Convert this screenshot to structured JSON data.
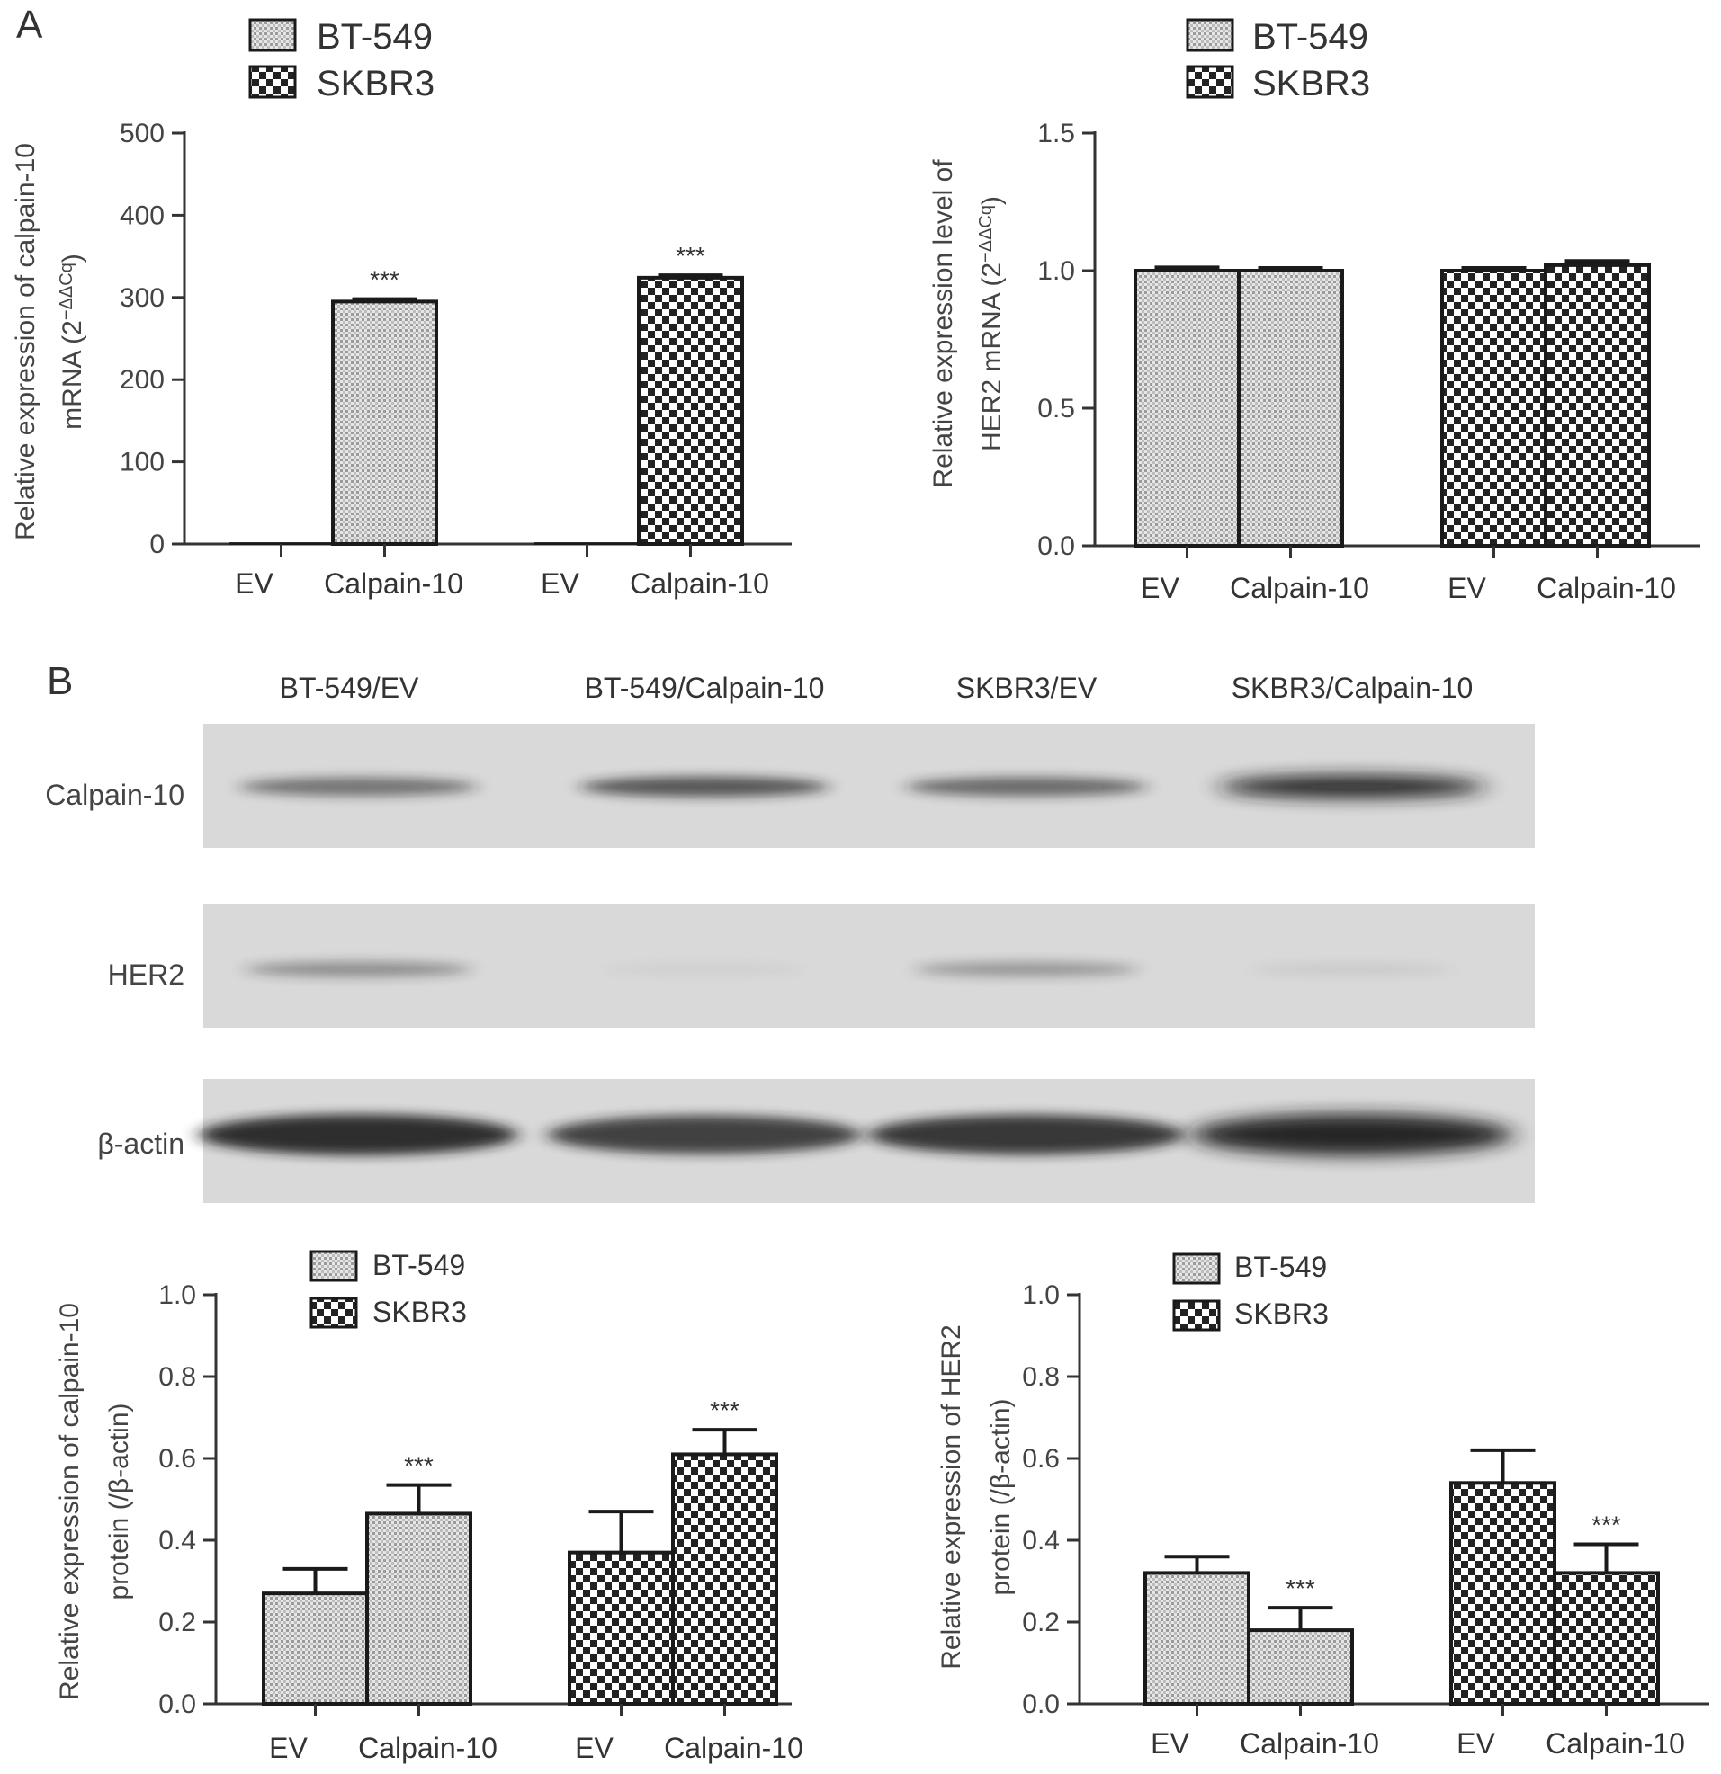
{
  "panels": {
    "a": "A",
    "b": "B"
  },
  "colors": {
    "axis": "#333333",
    "bar_edge": "#1a1a1a",
    "blot_bg": "#d9d9d9",
    "band": "#1c1c1c"
  },
  "legend": {
    "bt549": "BT-549",
    "skbr3": "SKBR3"
  },
  "chart_data": [
    {
      "type": "bar",
      "id": "calpain10_mrna",
      "ylabel_line1": "Relative expression of calpain-10",
      "ylabel_line2_prefix": "mRNA (2",
      "ylabel_line2_sup": "−ΔΔCq",
      "ylabel_line2_suffix": ")",
      "ylim": [
        0,
        500
      ],
      "yticks": [
        0,
        100,
        200,
        300,
        400,
        500
      ],
      "tick_labels": [
        "0",
        "100",
        "200",
        "300",
        "400",
        "500"
      ],
      "groups": [
        {
          "name": "BT-549",
          "pattern": "fine",
          "bars": [
            {
              "label": "EV",
              "value": 1,
              "error": 0,
              "sig": ""
            },
            {
              "label": "Calpain-10",
              "value": 295,
              "error": 3,
              "sig": "***"
            }
          ]
        },
        {
          "name": "SKBR3",
          "pattern": "check",
          "bars": [
            {
              "label": "EV",
              "value": 1,
              "error": 0,
              "sig": ""
            },
            {
              "label": "Calpain-10",
              "value": 324,
              "error": 3,
              "sig": "***"
            }
          ]
        }
      ]
    },
    {
      "type": "bar",
      "id": "her2_mrna",
      "ylabel_line1": "Relative expression level of",
      "ylabel_line2_prefix": "HER2 mRNA (2",
      "ylabel_line2_sup": "−ΔΔCq",
      "ylabel_line2_suffix": ")",
      "ylim": [
        0,
        1.5
      ],
      "yticks": [
        0,
        0.5,
        1.0,
        1.5
      ],
      "tick_labels": [
        "0.0",
        "0.5",
        "1.0",
        "1.5"
      ],
      "groups": [
        {
          "name": "BT-549",
          "pattern": "fine",
          "bars": [
            {
              "label": "EV",
              "value": 1.0,
              "error": 0.012,
              "sig": ""
            },
            {
              "label": "Calpain-10",
              "value": 1.0,
              "error": 0.01,
              "sig": ""
            }
          ]
        },
        {
          "name": "SKBR3",
          "pattern": "check",
          "bars": [
            {
              "label": "EV",
              "value": 1.0,
              "error": 0.01,
              "sig": ""
            },
            {
              "label": "Calpain-10",
              "value": 1.02,
              "error": 0.015,
              "sig": ""
            }
          ]
        }
      ]
    },
    {
      "type": "bar",
      "id": "calpain10_protein",
      "ylabel_line1": "Relative expression of calpain-10",
      "ylabel_line2_prefix": "protein (/β-actin)",
      "ylabel_line2_sup": "",
      "ylabel_line2_suffix": "",
      "ylim": [
        0,
        1.0
      ],
      "yticks": [
        0,
        0.2,
        0.4,
        0.6,
        0.8,
        1.0
      ],
      "tick_labels": [
        "0.0",
        "0.2",
        "0.4",
        "0.6",
        "0.8",
        "1.0"
      ],
      "groups": [
        {
          "name": "BT-549",
          "pattern": "fine",
          "bars": [
            {
              "label": "EV",
              "value": 0.27,
              "error": 0.06,
              "sig": ""
            },
            {
              "label": "Calpain-10",
              "value": 0.465,
              "error": 0.07,
              "sig": "***"
            }
          ]
        },
        {
          "name": "SKBR3",
          "pattern": "check",
          "bars": [
            {
              "label": "EV",
              "value": 0.37,
              "error": 0.1,
              "sig": ""
            },
            {
              "label": "Calpain-10",
              "value": 0.61,
              "error": 0.06,
              "sig": "***"
            }
          ]
        }
      ]
    },
    {
      "type": "bar",
      "id": "her2_protein",
      "ylabel_line1": "Relative expression of HER2",
      "ylabel_line2_prefix": "protein (/β-actin)",
      "ylabel_line2_sup": "",
      "ylabel_line2_suffix": "",
      "ylim": [
        0,
        1.0
      ],
      "yticks": [
        0,
        0.2,
        0.4,
        0.6,
        0.8,
        1.0
      ],
      "tick_labels": [
        "0.0",
        "0.2",
        "0.4",
        "0.6",
        "0.8",
        "1.0"
      ],
      "groups": [
        {
          "name": "BT-549",
          "pattern": "fine",
          "bars": [
            {
              "label": "EV",
              "value": 0.32,
              "error": 0.04,
              "sig": ""
            },
            {
              "label": "Calpain-10",
              "value": 0.18,
              "error": 0.055,
              "sig": "***"
            }
          ]
        },
        {
          "name": "SKBR3",
          "pattern": "check",
          "bars": [
            {
              "label": "EV",
              "value": 0.54,
              "error": 0.08,
              "sig": ""
            },
            {
              "label": "Calpain-10",
              "value": 0.32,
              "error": 0.07,
              "sig": "***"
            }
          ]
        }
      ]
    }
  ],
  "western_blot": {
    "columns": [
      "BT-549/EV",
      "BT-549/Calpain-10",
      "SKBR3/EV",
      "SKBR3/Calpain-10"
    ],
    "rows": [
      {
        "name": "Calpain-10",
        "intensity": [
          0.55,
          0.7,
          0.6,
          0.95
        ]
      },
      {
        "name": "HER2",
        "intensity": [
          0.4,
          0.05,
          0.35,
          0.08
        ]
      },
      {
        "name": "β-actin",
        "intensity": [
          0.9,
          0.8,
          0.85,
          0.95
        ]
      }
    ]
  }
}
